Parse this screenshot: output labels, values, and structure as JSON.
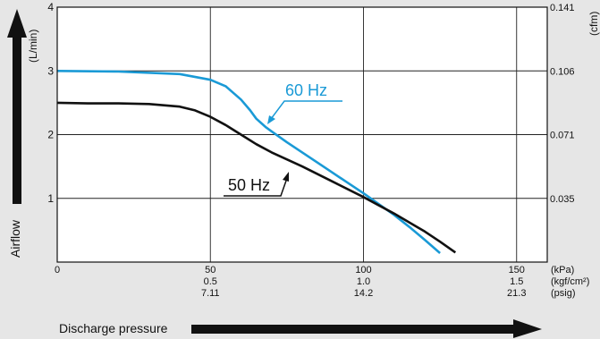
{
  "chart_data": {
    "type": "line",
    "xlabel": "Discharge pressure",
    "ylabel": "Airflow",
    "xlim": [
      0,
      160
    ],
    "ylim": [
      0,
      4
    ],
    "grid": true,
    "x_ticks": [
      {
        "value": 0,
        "labels": [
          "0"
        ]
      },
      {
        "value": 50,
        "labels": [
          "50",
          "0.5",
          "7.11"
        ]
      },
      {
        "value": 100,
        "labels": [
          "100",
          "1.0",
          "14.2"
        ]
      },
      {
        "value": 150,
        "labels": [
          "150",
          "1.5",
          "21.3"
        ]
      }
    ],
    "x_units": [
      "(kPa)",
      "(kgf/cm²)",
      "(psig)"
    ],
    "y_ticks": [
      {
        "value": 1,
        "label": "1"
      },
      {
        "value": 2,
        "label": "2"
      },
      {
        "value": 3,
        "label": "3"
      },
      {
        "value": 4,
        "label": "4"
      }
    ],
    "y_unit_left": "(L/min)",
    "y_ticks_right": [
      {
        "value": 1,
        "label": "0.035"
      },
      {
        "value": 2,
        "label": "0.071"
      },
      {
        "value": 3,
        "label": "0.106"
      },
      {
        "value": 4,
        "label": "0.141"
      }
    ],
    "y_unit_right": "(cfm)",
    "series": [
      {
        "name": "60 Hz",
        "color": "#1a9ad6",
        "x": [
          0,
          20,
          40,
          50,
          55,
          60,
          63,
          65,
          68,
          70,
          75,
          80,
          85,
          90,
          95,
          100,
          105,
          110,
          115,
          120,
          125
        ],
        "y": [
          3.0,
          2.99,
          2.95,
          2.86,
          2.76,
          2.55,
          2.38,
          2.25,
          2.12,
          2.05,
          1.88,
          1.72,
          1.56,
          1.4,
          1.24,
          1.08,
          0.91,
          0.74,
          0.55,
          0.35,
          0.14
        ]
      },
      {
        "name": "50 Hz",
        "color": "#111111",
        "x": [
          0,
          10,
          20,
          30,
          40,
          45,
          50,
          55,
          60,
          65,
          70,
          80,
          90,
          100,
          110,
          120,
          125,
          130
        ],
        "y": [
          2.5,
          2.49,
          2.49,
          2.48,
          2.44,
          2.38,
          2.28,
          2.15,
          2.0,
          1.85,
          1.72,
          1.5,
          1.26,
          1.02,
          0.76,
          0.48,
          0.32,
          0.15
        ]
      }
    ]
  }
}
